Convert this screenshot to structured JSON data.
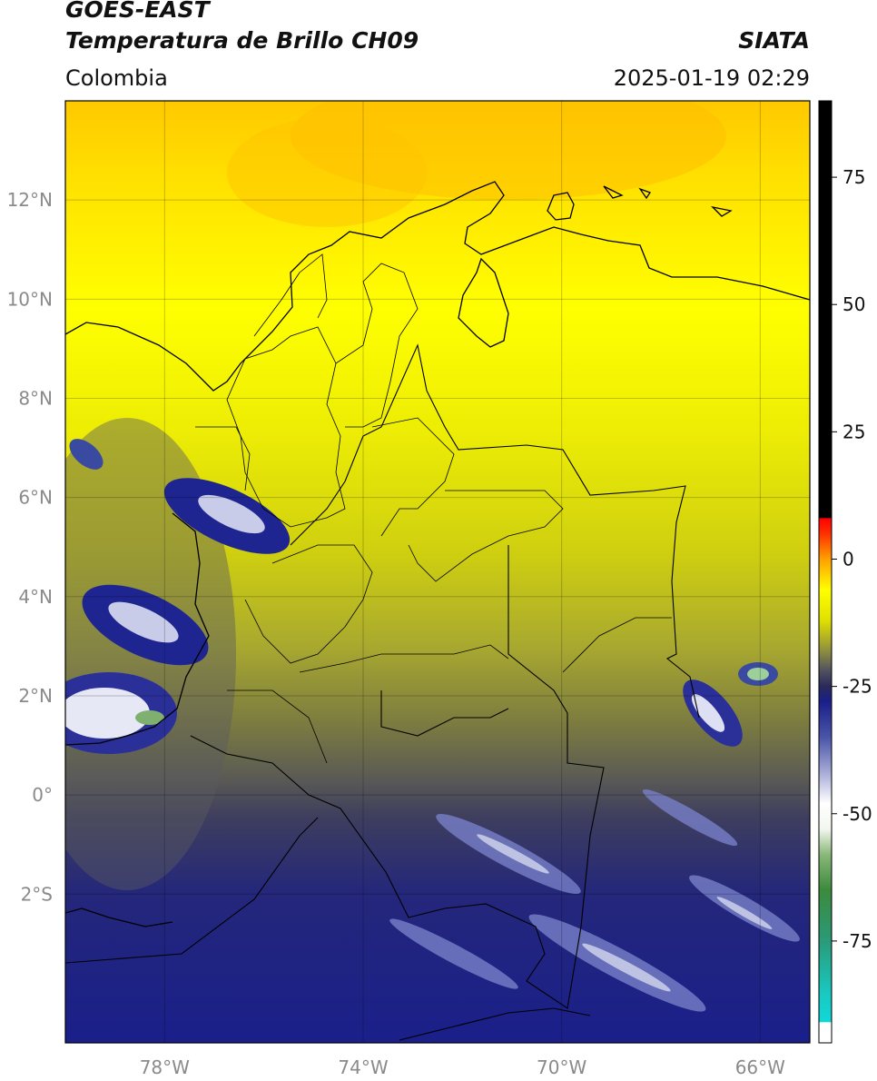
{
  "header": {
    "satellite": "GOES-EAST",
    "product": "Temperatura de Brillo CH09",
    "organization": "SIATA",
    "region": "Colombia",
    "timestamp": "2025-01-19 02:29"
  },
  "map": {
    "lon_range": [
      -80,
      -65
    ],
    "lat_range": [
      -5,
      14
    ],
    "lat_ticks": [
      {
        "value": 12,
        "label": "12°N"
      },
      {
        "value": 10,
        "label": "10°N"
      },
      {
        "value": 8,
        "label": "8°N"
      },
      {
        "value": 6,
        "label": "6°N"
      },
      {
        "value": 4,
        "label": "4°N"
      },
      {
        "value": 2,
        "label": "2°N"
      },
      {
        "value": 0,
        "label": "0°"
      },
      {
        "value": -2,
        "label": "2°S"
      }
    ],
    "lon_ticks": [
      {
        "value": -78,
        "label": "78°W"
      },
      {
        "value": -74,
        "label": "74°W"
      },
      {
        "value": -70,
        "label": "70°W"
      },
      {
        "value": -66,
        "label": "66°W"
      }
    ],
    "grid": true
  },
  "colorbar": {
    "range": [
      -95,
      90
    ],
    "ticks": [
      {
        "value": 75,
        "label": "75"
      },
      {
        "value": 50,
        "label": "50"
      },
      {
        "value": 25,
        "label": "25"
      },
      {
        "value": 0,
        "label": "0"
      },
      {
        "value": -25,
        "label": "-25"
      },
      {
        "value": -50,
        "label": "-50"
      },
      {
        "value": -75,
        "label": "-75"
      }
    ],
    "stops": [
      {
        "value": -95,
        "color": "#ffffff"
      },
      {
        "value": -91,
        "color": "#ffffff"
      },
      {
        "value": -90.9,
        "color": "#10d8d8"
      },
      {
        "value": -85,
        "color": "#19c8bf"
      },
      {
        "value": -75,
        "color": "#2a9a78"
      },
      {
        "value": -65,
        "color": "#3c8a3c"
      },
      {
        "value": -58,
        "color": "#8ab87a"
      },
      {
        "value": -53,
        "color": "#f2f7ee"
      },
      {
        "value": -48,
        "color": "#ffffff"
      },
      {
        "value": -42,
        "color": "#a8acd8"
      },
      {
        "value": -35,
        "color": "#4a55a8"
      },
      {
        "value": -28,
        "color": "#1a1f8a"
      },
      {
        "value": -25,
        "color": "#2a2a5a"
      },
      {
        "value": -22,
        "color": "#505060"
      },
      {
        "value": -18,
        "color": "#8e8e40"
      },
      {
        "value": -12,
        "color": "#e0e000"
      },
      {
        "value": -6,
        "color": "#ffff00"
      },
      {
        "value": 0,
        "color": "#ffa000"
      },
      {
        "value": 5,
        "color": "#ff3000"
      },
      {
        "value": 8,
        "color": "#ff0000"
      },
      {
        "value": 8.1,
        "color": "#000000"
      },
      {
        "value": 90,
        "color": "#000000"
      }
    ]
  }
}
